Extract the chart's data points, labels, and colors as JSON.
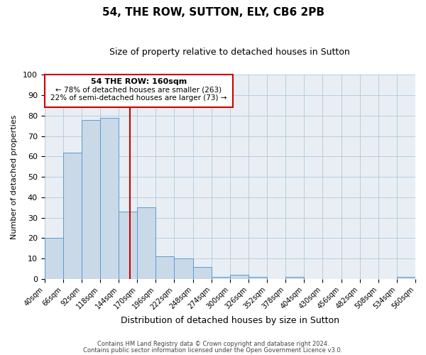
{
  "title": "54, THE ROW, SUTTON, ELY, CB6 2PB",
  "subtitle": "Size of property relative to detached houses in Sutton",
  "xlabel": "Distribution of detached houses by size in Sutton",
  "ylabel": "Number of detached properties",
  "bar_edges": [
    40,
    66,
    92,
    118,
    144,
    170,
    196,
    222,
    248,
    274,
    300,
    326,
    352,
    378,
    404,
    430,
    456,
    482,
    508,
    534,
    560
  ],
  "bar_heights": [
    20,
    62,
    78,
    79,
    33,
    35,
    11,
    10,
    6,
    1,
    2,
    1,
    0,
    1,
    0,
    0,
    0,
    0,
    0,
    1
  ],
  "bar_color": "#c9d9e8",
  "bar_edge_color": "#5b9bd5",
  "vline_x": 160,
  "vline_color": "#cc0000",
  "annotation_text_line1": "54 THE ROW: 160sqm",
  "annotation_text_line2": "← 78% of detached houses are smaller (263)",
  "annotation_text_line3": "22% of semi-detached houses are larger (73) →",
  "box_edge_color": "#cc0000",
  "ylim": [
    0,
    100
  ],
  "xlim": [
    40,
    560
  ],
  "tick_labels": [
    "40sqm",
    "66sqm",
    "92sqm",
    "118sqm",
    "144sqm",
    "170sqm",
    "196sqm",
    "222sqm",
    "248sqm",
    "274sqm",
    "300sqm",
    "326sqm",
    "352sqm",
    "378sqm",
    "404sqm",
    "430sqm",
    "456sqm",
    "482sqm",
    "508sqm",
    "534sqm",
    "560sqm"
  ],
  "footnote1": "Contains HM Land Registry data © Crown copyright and database right 2024.",
  "footnote2": "Contains public sector information licensed under the Open Government Licence v3.0.",
  "background_color": "#e8eef4",
  "grid_color": "#b0c8dc"
}
